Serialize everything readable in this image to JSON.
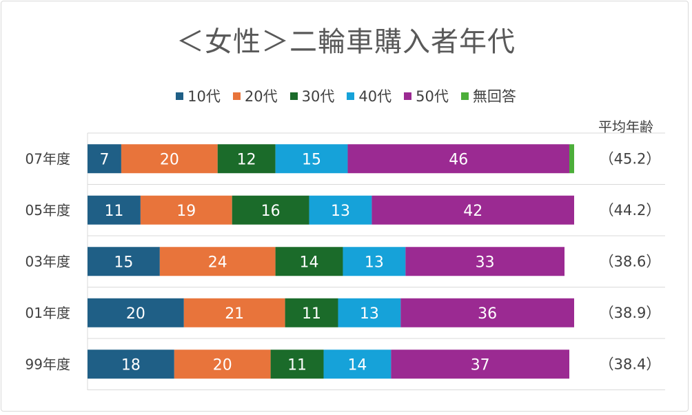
{
  "chart_data": {
    "type": "bar",
    "orientation": "horizontal-stacked",
    "title": "＜女性＞二輪車購入者年代",
    "categories": [
      "07年度",
      "05年度",
      "03年度",
      "01年度",
      "99年度"
    ],
    "series": [
      {
        "name": "10代",
        "color": "#1f5f86",
        "values": [
          7,
          11,
          15,
          20,
          18
        ]
      },
      {
        "name": "20代",
        "color": "#e8743b",
        "values": [
          20,
          19,
          24,
          21,
          20
        ]
      },
      {
        "name": "30代",
        "color": "#1b6b2a",
        "values": [
          12,
          16,
          14,
          11,
          11
        ]
      },
      {
        "name": "40代",
        "color": "#16a2d9",
        "values": [
          15,
          13,
          13,
          13,
          14
        ]
      },
      {
        "name": "50代",
        "color": "#9b2a92",
        "values": [
          46,
          42,
          33,
          36,
          37
        ]
      },
      {
        "name": "無回答",
        "color": "#4cae3a",
        "values": [
          1,
          0,
          0,
          0,
          0
        ]
      }
    ],
    "avg_header": "平均年齢",
    "averages": [
      "（45.2）",
      "（44.2）",
      "（38.6）",
      "（38.9）",
      "（38.4）"
    ],
    "xlim": [
      0,
      101
    ],
    "legend_position": "top-center"
  }
}
